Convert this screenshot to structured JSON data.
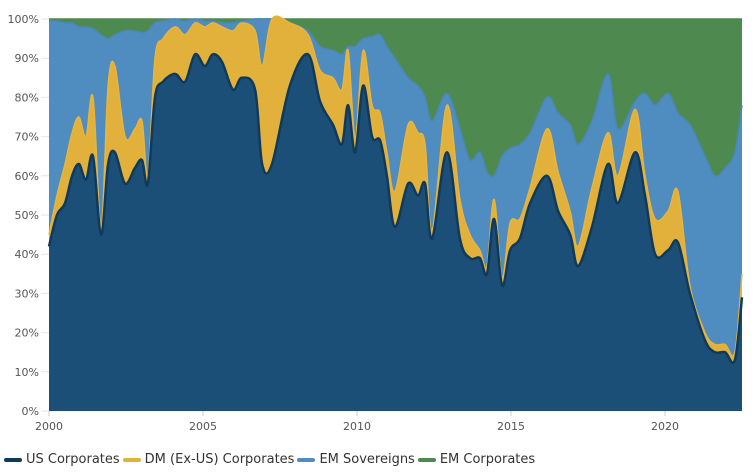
{
  "chart_data": {
    "type": "area",
    "stacked": true,
    "title": "",
    "xlabel": "",
    "ylabel": "",
    "xlim": [
      2000,
      2022.5
    ],
    "ylim": [
      0,
      100
    ],
    "x_ticks": [
      "2000",
      "2005",
      "2010",
      "2015",
      "2020"
    ],
    "x_tick_values": [
      2000,
      2005,
      2010,
      2015,
      2020
    ],
    "y_ticks": [
      "0%",
      "10%",
      "20%",
      "30%",
      "40%",
      "50%",
      "60%",
      "70%",
      "80%",
      "90%",
      "100%"
    ],
    "y_tick_values": [
      0,
      10,
      20,
      30,
      40,
      50,
      60,
      70,
      80,
      90,
      100
    ],
    "legend_position": "bottom-left",
    "x": [
      2000.0,
      2000.26,
      2000.52,
      2000.75,
      2000.97,
      2001.2,
      2001.43,
      2001.69,
      2001.92,
      2002.14,
      2002.47,
      2002.79,
      2003.02,
      2003.21,
      2003.44,
      2003.7,
      2004.09,
      2004.42,
      2004.74,
      2005.06,
      2005.32,
      2005.62,
      2005.97,
      2006.26,
      2006.69,
      2006.92,
      2007.24,
      2007.82,
      2008.41,
      2008.8,
      2009.22,
      2009.51,
      2009.71,
      2009.94,
      2010.2,
      2010.49,
      2010.75,
      2010.97,
      2011.23,
      2011.66,
      2011.98,
      2012.21,
      2012.44,
      2012.92,
      2013.34,
      2013.67,
      2013.99,
      2014.22,
      2014.45,
      2014.71,
      2014.97,
      2015.29,
      2015.62,
      2016.17,
      2016.53,
      2016.92,
      2017.18,
      2017.63,
      2018.15,
      2018.47,
      2019.03,
      2019.35,
      2019.68,
      2020.1,
      2020.42,
      2020.81,
      2021.3,
      2021.62,
      2021.95,
      2022.27,
      2022.5
    ],
    "series": [
      {
        "name": "US Corporates",
        "color": "#1b4f78",
        "values": [
          42,
          50,
          53,
          60,
          63,
          59,
          65,
          45,
          63,
          66,
          58,
          62,
          64,
          58,
          80,
          84,
          86,
          84,
          91,
          88,
          91,
          89,
          82,
          85,
          82,
          63,
          63,
          83,
          91,
          79,
          73,
          68,
          78,
          66,
          83,
          70,
          69,
          60,
          47,
          58,
          55,
          58,
          44,
          66,
          44,
          39,
          39,
          35,
          49,
          32,
          41,
          44,
          53,
          60,
          51,
          45,
          37,
          47,
          63,
          53,
          66,
          55,
          40,
          41,
          43,
          30,
          18,
          15,
          15,
          13,
          29
        ]
      },
      {
        "name": "DM (Ex-US) Corporates",
        "color": "#e2b13c",
        "values": [
          3,
          5,
          10,
          11,
          12,
          11,
          15,
          2,
          20,
          22,
          12,
          10,
          10,
          2,
          10,
          11,
          12,
          12,
          8,
          10,
          8,
          9,
          15,
          14,
          15,
          25,
          37,
          16,
          5,
          8,
          12,
          14,
          14,
          4,
          9,
          8,
          7,
          6,
          9,
          15,
          16,
          10,
          2,
          12,
          10,
          6,
          2,
          2,
          5,
          2,
          7,
          5,
          4,
          12,
          10,
          6,
          5,
          10,
          8,
          7,
          11,
          5,
          9,
          10,
          13,
          2,
          2,
          2,
          2,
          2,
          6
        ]
      },
      {
        "name": "EM Sovereigns",
        "color": "#4f8cc0",
        "values": [
          54.5,
          44.5,
          36,
          28,
          23,
          28,
          17.5,
          49,
          12,
          8,
          27,
          25,
          22.5,
          37,
          9,
          4.5,
          2,
          3.5,
          1,
          1.5,
          0.5,
          1,
          2,
          0.5,
          3,
          12,
          0,
          0,
          1,
          6,
          7,
          9,
          1,
          23,
          3,
          17.5,
          20,
          27,
          34,
          12,
          12,
          12,
          28,
          3,
          18,
          19,
          25,
          24,
          6,
          31,
          19,
          19,
          14,
          8,
          15,
          22,
          26,
          17,
          15,
          12,
          2,
          21,
          29,
          30,
          20,
          41,
          45,
          43,
          45,
          51,
          43
        ]
      },
      {
        "name": "EM Corporates",
        "color": "#4e8a50",
        "values": [
          0.5,
          0.5,
          1,
          1,
          2,
          2,
          2.5,
          4,
          5,
          4,
          3,
          3,
          3.5,
          3,
          1,
          0.5,
          0,
          0.5,
          0,
          0.5,
          0.5,
          1,
          1,
          0.5,
          0,
          0,
          0,
          1,
          3,
          7,
          8,
          9,
          7,
          7,
          5,
          4.5,
          4,
          7,
          10,
          15,
          17,
          20,
          26,
          19,
          28,
          36,
          34,
          39,
          40,
          35,
          33,
          32,
          29,
          20,
          24,
          27,
          32,
          26,
          14,
          28,
          21,
          19,
          22,
          19,
          24,
          27,
          35,
          40,
          38,
          34,
          22
        ]
      }
    ]
  }
}
